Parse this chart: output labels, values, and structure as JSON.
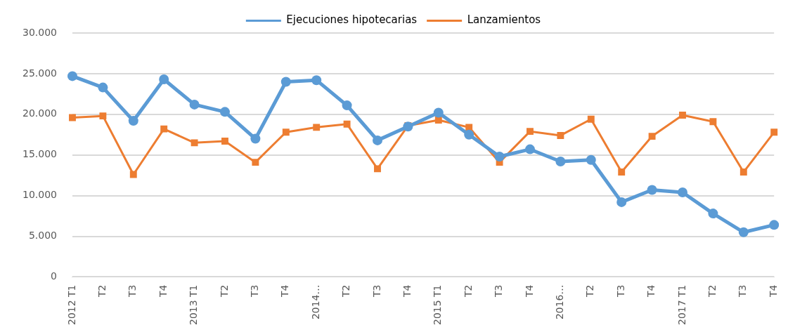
{
  "chart_data": {
    "type": "line",
    "categories": [
      "2012 T1",
      "T2",
      "T3",
      "T4",
      "2013 T1",
      "T2",
      "T3",
      "T4",
      "2014…",
      "T2",
      "T3",
      "T4",
      "2015 T1",
      "T2",
      "T3",
      "T4",
      "2016…",
      "T2",
      "T3",
      "T4",
      "2017 T1",
      "T2",
      "T3",
      "T4"
    ],
    "series": [
      {
        "name": "Ejecuciones hipotecarias",
        "color": "#5b9bd5",
        "marker": "circle",
        "values": [
          24700,
          23300,
          19200,
          24300,
          21200,
          20300,
          17000,
          24000,
          24200,
          21100,
          16800,
          18500,
          20200,
          17500,
          14800,
          15700,
          14200,
          14400,
          9200,
          10700,
          10400,
          7800,
          5500,
          6400
        ]
      },
      {
        "name": "Lanzamientos",
        "color": "#ed7d31",
        "marker": "square",
        "values": [
          19600,
          19800,
          12600,
          18200,
          16500,
          16700,
          14100,
          17800,
          18400,
          18800,
          13300,
          18600,
          19300,
          18400,
          14100,
          17900,
          17400,
          19400,
          12900,
          17300,
          19900,
          19100,
          12900,
          17800
        ]
      }
    ],
    "ylim": [
      0,
      30000
    ],
    "yticks": [
      {
        "value": 0,
        "label": "0"
      },
      {
        "value": 5000,
        "label": "5.000"
      },
      {
        "value": 10000,
        "label": "10.000"
      },
      {
        "value": 15000,
        "label": "15.000"
      },
      {
        "value": 20000,
        "label": "20.000"
      },
      {
        "value": 25000,
        "label": "25.000"
      },
      {
        "value": 30000,
        "label": "30.000"
      }
    ],
    "grid": "y",
    "legend": "top"
  }
}
